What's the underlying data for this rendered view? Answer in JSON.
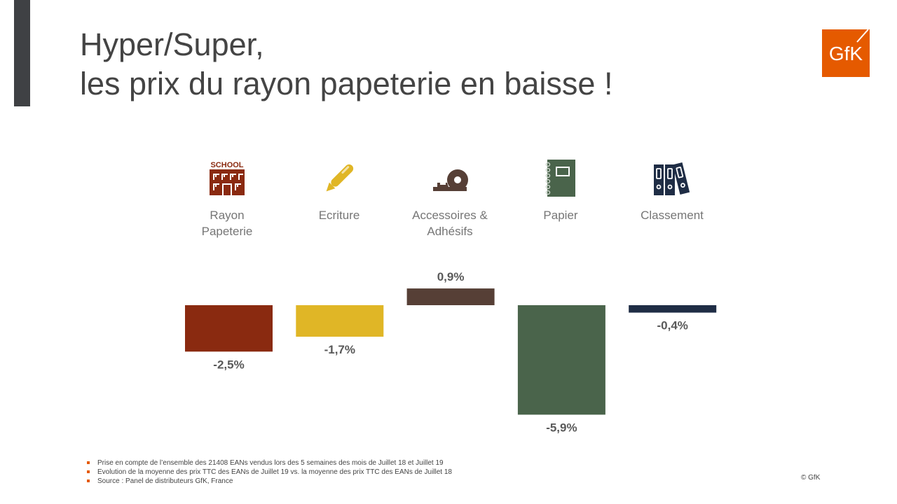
{
  "slide": {
    "title_line1": "Hyper/Super,",
    "title_line2": "les prix du rayon papeterie en baisse !",
    "logo_text": "GfK",
    "copyright": "© GfK"
  },
  "categories": [
    {
      "label_line1": "Rayon",
      "label_line2": "Papeterie",
      "icon": "school-building-icon",
      "color": "#8a2a10",
      "icon_text": "SCHOOL"
    },
    {
      "label_line1": "Ecriture",
      "label_line2": "",
      "icon": "pen-icon",
      "color": "#e0b626"
    },
    {
      "label_line1": "Accessoires &",
      "label_line2": "Adhésifs",
      "icon": "tape-dispenser-icon",
      "color": "#563f36"
    },
    {
      "label_line1": "Papier",
      "label_line2": "",
      "icon": "notebook-icon",
      "color": "#4a644b"
    },
    {
      "label_line1": "Classement",
      "label_line2": "",
      "icon": "binders-icon",
      "color": "#1f2d45"
    }
  ],
  "chart_data": {
    "type": "bar",
    "categories": [
      "Rayon Papeterie",
      "Ecriture",
      "Accessoires & Adhésifs",
      "Papier",
      "Classement"
    ],
    "values": [
      -2.5,
      -1.7,
      0.9,
      -5.9,
      -0.4
    ],
    "labels": [
      "-2,5%",
      "-1,7%",
      "0,9%",
      "-5,9%",
      "-0,4%"
    ],
    "colors": [
      "#8a2a10",
      "#e0b626",
      "#563f36",
      "#4a644b",
      "#1f2d45"
    ],
    "title": "",
    "xlabel": "",
    "ylabel": "",
    "ylim": [
      -6,
      1
    ],
    "grid": false,
    "legend": "none"
  },
  "footnotes": [
    "Prise en compte de l’ensemble des 21408 EANs vendus lors des 5 semaines des mois de Juillet 18 et Juillet 19",
    "Evolution de la moyenne des prix TTC des EANs de Juillet 19 vs. la moyenne des prix TTC des EANs de Juillet 18",
    "Source : Panel de distributeurs GfK, France"
  ]
}
